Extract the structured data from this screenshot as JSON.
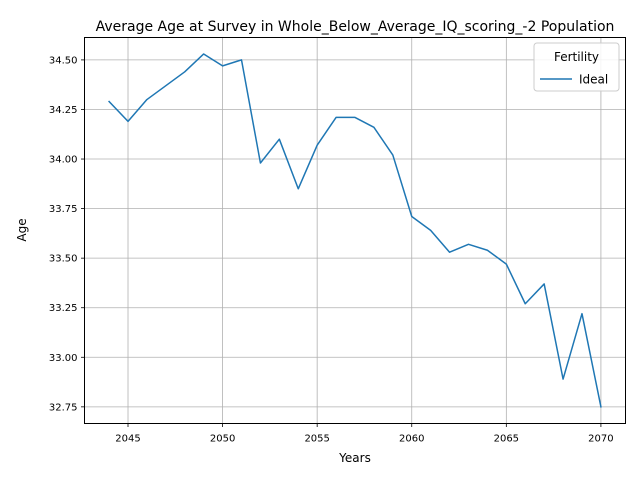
{
  "chart_data": {
    "type": "line",
    "title": "Average Age at Survey in Whole_Below_Average_IQ_scoring_-2 Population",
    "xlabel": "Years",
    "ylabel": "Age",
    "xlim": [
      2042.7,
      2071.3
    ],
    "ylim": [
      32.666,
      34.613
    ],
    "x_ticks": [
      2045,
      2050,
      2055,
      2060,
      2065,
      2070
    ],
    "y_ticks": [
      32.75,
      33.0,
      33.25,
      33.5,
      33.75,
      34.0,
      34.25,
      34.5
    ],
    "x_tick_labels": [
      "2045",
      "2050",
      "2055",
      "2060",
      "2065",
      "2070"
    ],
    "y_tick_labels": [
      "32.75",
      "33.00",
      "33.25",
      "33.50",
      "33.75",
      "34.00",
      "34.25",
      "34.50"
    ],
    "grid": true,
    "legend": {
      "title": "Fertility",
      "placement": "top-right"
    },
    "x": [
      2044,
      2045,
      2046,
      2047,
      2048,
      2049,
      2050,
      2051,
      2052,
      2053,
      2054,
      2055,
      2056,
      2057,
      2058,
      2059,
      2060,
      2061,
      2062,
      2063,
      2064,
      2065,
      2066,
      2067,
      2068,
      2069,
      2070
    ],
    "series": [
      {
        "name": "Ideal",
        "color": "#1f77b4",
        "values": [
          34.29,
          34.19,
          34.3,
          34.37,
          34.44,
          34.53,
          34.47,
          34.5,
          33.98,
          34.1,
          33.85,
          34.07,
          34.21,
          34.21,
          34.16,
          34.02,
          33.71,
          33.64,
          33.53,
          33.57,
          33.54,
          33.47,
          33.27,
          33.37,
          32.89,
          33.22,
          32.75
        ]
      }
    ]
  }
}
